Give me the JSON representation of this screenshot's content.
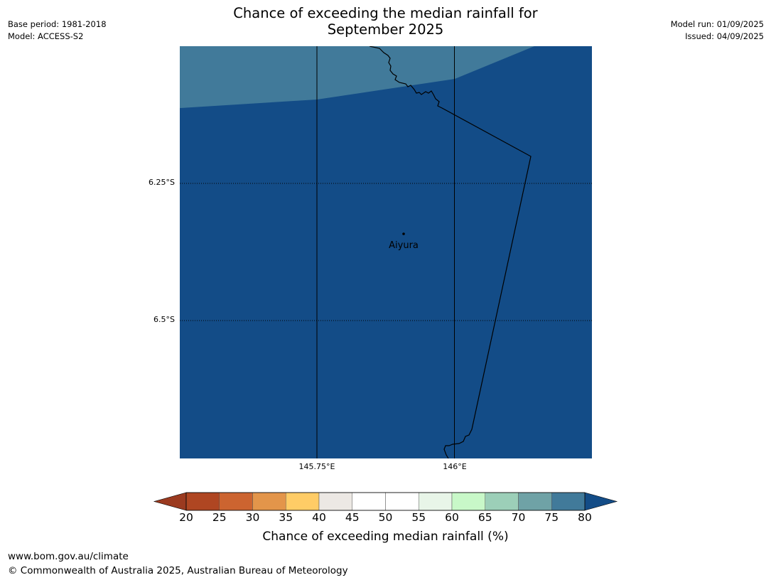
{
  "header": {
    "title_line1": "Chance of exceeding the median rainfall for",
    "title_line2": "September 2025",
    "base_period": "Base period: 1981-2018",
    "model": "Model: ACCESS-S2",
    "model_run": "Model run: 01/09/2025",
    "issued": "Issued: 04/09/2025"
  },
  "map": {
    "lat_labels": [
      "6.25°S",
      "6.5°S"
    ],
    "lon_labels": [
      "145.75°E",
      "146°E"
    ],
    "place_name": "Aiyura",
    "colors": {
      "low_band": "#134c87",
      "high_band": "#417a9a",
      "outline": "#000000",
      "gridline": "#000000"
    }
  },
  "colorbar": {
    "title": "Chance of exceeding median rainfall (%)",
    "ticks": [
      "20",
      "25",
      "30",
      "35",
      "40",
      "45",
      "50",
      "55",
      "60",
      "65",
      "70",
      "75",
      "80"
    ],
    "colors": [
      "#af4622",
      "#cc6430",
      "#e3954a",
      "#ffcc66",
      "#ece8e4",
      "#ffffff",
      "#ffffff",
      "#e8f5e8",
      "#c8f8c8",
      "#9ccfb8",
      "#6fa2a6",
      "#417a9a"
    ],
    "under_color": "#9b3a1f",
    "over_color": "#134c87"
  },
  "footer": {
    "url": "www.bom.gov.au/climate",
    "copyright": "© Commonwealth of Australia 2025, Australian Bureau of Meteorology"
  }
}
